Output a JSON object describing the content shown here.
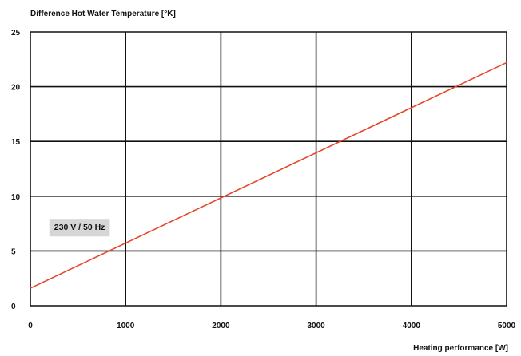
{
  "chart_data": {
    "type": "line",
    "title": "",
    "ylabel": "Difference Hot Water Temperature [°K]",
    "xlabel": "Heating performance [W]",
    "xlim": [
      0,
      5000
    ],
    "ylim": [
      0,
      25
    ],
    "x_ticks": [
      "0",
      "1000",
      "2000",
      "3000",
      "4000",
      "5000"
    ],
    "y_ticks": [
      "0",
      "5",
      "10",
      "15",
      "20",
      "25"
    ],
    "grid": true,
    "series": [
      {
        "name": "",
        "color": "#e8452b",
        "x": [
          0,
          5000
        ],
        "y": [
          1.6,
          22.2
        ]
      }
    ],
    "annotation": {
      "text": "230 V / 50 Hz",
      "x": 250,
      "y": 7.2
    }
  }
}
